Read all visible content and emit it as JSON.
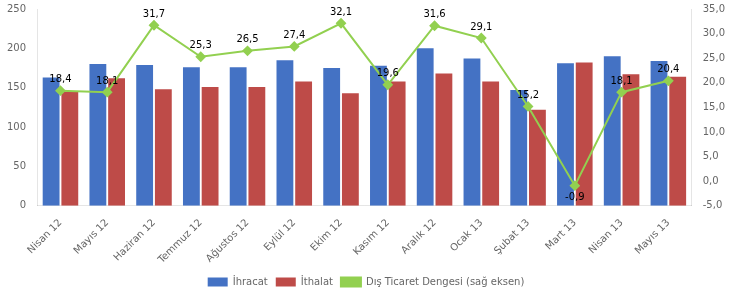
{
  "chart_data": {
    "type": "bar",
    "categories": [
      "Nisan 12",
      "Mayıs 12",
      "Haziran 12",
      "Temmuz 12",
      "Ağustos 12",
      "Eylül 12",
      "Ekim 12",
      "Kasım 12",
      "Aralık 12",
      "Ocak 13",
      "Şubat 13",
      "Mart 13",
      "Nisan 13",
      "Mayıs 13"
    ],
    "series": [
      {
        "name": "İhracat",
        "type": "bar",
        "color": "#4472C4",
        "values": [
          163,
          180,
          179,
          176,
          176,
          185,
          175,
          178,
          200,
          187,
          147,
          181,
          190,
          184
        ]
      },
      {
        "name": "İthalat",
        "type": "bar",
        "color": "#BE4B48",
        "values": [
          145,
          162,
          148,
          151,
          151,
          158,
          143,
          158,
          168,
          158,
          122,
          182,
          167,
          164
        ]
      },
      {
        "name": "Dış Ticaret Dengesi (sağ eksen)",
        "type": "line",
        "color": "#92D050",
        "marker": "diamond",
        "axis": "y2",
        "data_labels": true,
        "values": [
          18.4,
          18.1,
          31.7,
          25.3,
          26.5,
          27.4,
          32.1,
          19.6,
          31.6,
          29.1,
          15.2,
          -0.9,
          18.1,
          20.4
        ],
        "value_labels": [
          "18,4",
          "18,1",
          "31,7",
          "25,3",
          "26,5",
          "27,4",
          "32,1",
          "19,6",
          "31,6",
          "29,1",
          "15,2",
          "-0,9",
          "18,1",
          "20,4"
        ]
      }
    ],
    "ylim": [
      0,
      250
    ],
    "yticks": [
      0,
      50,
      100,
      150,
      200,
      250
    ],
    "y2lim": [
      -5,
      35
    ],
    "y2ticks": [
      {
        "value": -5,
        "label": "-5,0"
      },
      {
        "value": 0,
        "label": "0,0"
      },
      {
        "value": 5,
        "label": "5,0"
      },
      {
        "value": 10,
        "label": "10,0"
      },
      {
        "value": 15,
        "label": "15,0"
      },
      {
        "value": 20,
        "label": "20,0"
      },
      {
        "value": 25,
        "label": "25,0"
      },
      {
        "value": 30,
        "label": "30,0"
      },
      {
        "value": 35,
        "label": "35,0"
      }
    ],
    "grid": false,
    "legend": "bottom"
  }
}
